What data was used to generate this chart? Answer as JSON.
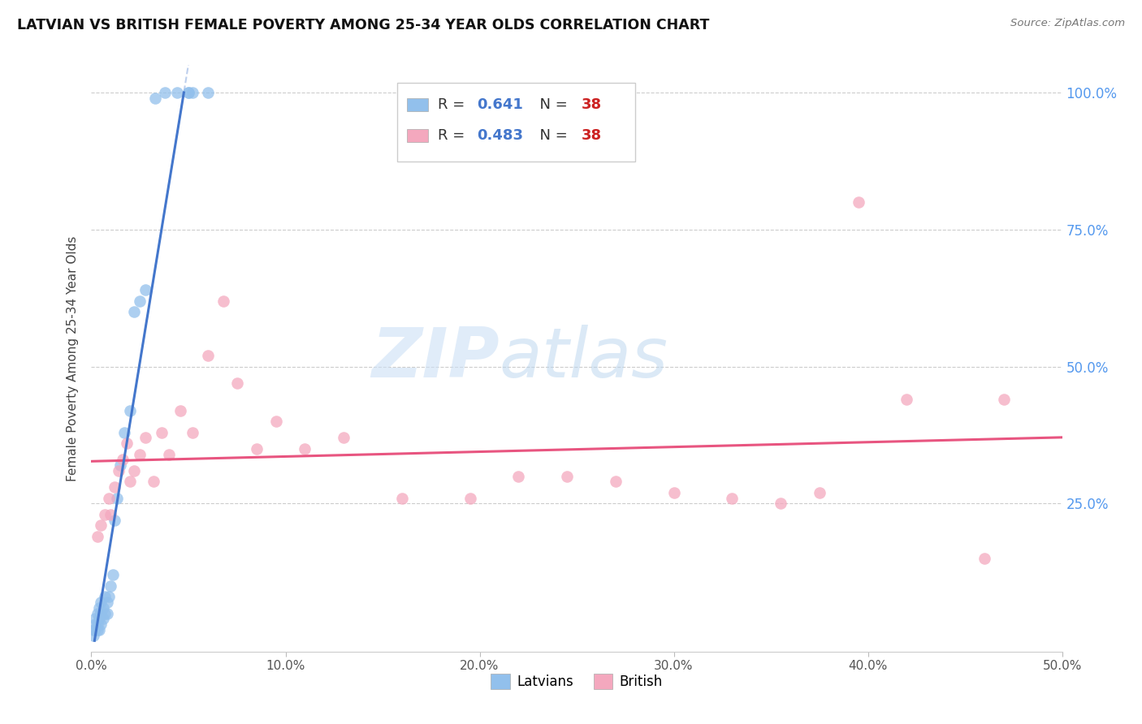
{
  "title": "LATVIAN VS BRITISH FEMALE POVERTY AMONG 25-34 YEAR OLDS CORRELATION CHART",
  "source": "Source: ZipAtlas.com",
  "ylabel": "Female Poverty Among 25-34 Year Olds",
  "xlim": [
    0.0,
    0.5
  ],
  "ylim": [
    -0.02,
    1.05
  ],
  "xtick_vals": [
    0.0,
    0.1,
    0.2,
    0.3,
    0.4,
    0.5
  ],
  "xtick_labels": [
    "0.0%",
    "10.0%",
    "20.0%",
    "30.0%",
    "40.0%",
    "50.0%"
  ],
  "ytick_vals": [
    0.25,
    0.5,
    0.75,
    1.0
  ],
  "ytick_labels": [
    "25.0%",
    "50.0%",
    "75.0%",
    "100.0%"
  ],
  "latvian_color": "#92c0ec",
  "british_color": "#f4a8be",
  "latvian_line_color": "#4477cc",
  "british_line_color": "#e85580",
  "r_latvian": "0.641",
  "r_british": "0.483",
  "n_latvian": "38",
  "n_british": "38",
  "legend_r_color": "#4477cc",
  "legend_n_color": "#cc2222",
  "watermark_zip": "ZIP",
  "watermark_atlas": "atlas",
  "background_color": "#ffffff",
  "latvian_x": [
    0.001,
    0.001,
    0.002,
    0.002,
    0.002,
    0.003,
    0.003,
    0.003,
    0.004,
    0.004,
    0.004,
    0.005,
    0.005,
    0.005,
    0.006,
    0.006,
    0.007,
    0.007,
    0.008,
    0.008,
    0.009,
    0.01,
    0.011,
    0.012,
    0.013,
    0.015,
    0.017,
    0.02,
    0.022,
    0.025,
    0.028,
    0.033,
    0.038,
    0.044,
    0.05,
    0.05,
    0.052,
    0.06
  ],
  "latvian_y": [
    0.01,
    0.02,
    0.02,
    0.03,
    0.04,
    0.02,
    0.03,
    0.05,
    0.02,
    0.04,
    0.06,
    0.03,
    0.05,
    0.07,
    0.04,
    0.06,
    0.05,
    0.08,
    0.05,
    0.07,
    0.08,
    0.1,
    0.12,
    0.22,
    0.26,
    0.32,
    0.38,
    0.42,
    0.6,
    0.62,
    0.64,
    0.99,
    1.0,
    1.0,
    1.0,
    1.0,
    1.0,
    1.0
  ],
  "british_x": [
    0.003,
    0.005,
    0.007,
    0.009,
    0.01,
    0.012,
    0.014,
    0.016,
    0.018,
    0.02,
    0.022,
    0.025,
    0.028,
    0.032,
    0.036,
    0.04,
    0.046,
    0.052,
    0.06,
    0.068,
    0.075,
    0.085,
    0.095,
    0.11,
    0.13,
    0.16,
    0.195,
    0.22,
    0.245,
    0.27,
    0.3,
    0.33,
    0.355,
    0.375,
    0.395,
    0.42,
    0.46,
    0.47
  ],
  "british_y": [
    0.19,
    0.21,
    0.23,
    0.26,
    0.23,
    0.28,
    0.31,
    0.33,
    0.36,
    0.29,
    0.31,
    0.34,
    0.37,
    0.29,
    0.38,
    0.34,
    0.42,
    0.38,
    0.52,
    0.62,
    0.47,
    0.35,
    0.4,
    0.35,
    0.37,
    0.26,
    0.26,
    0.3,
    0.3,
    0.29,
    0.27,
    0.26,
    0.25,
    0.27,
    0.8,
    0.44,
    0.15,
    0.44
  ]
}
